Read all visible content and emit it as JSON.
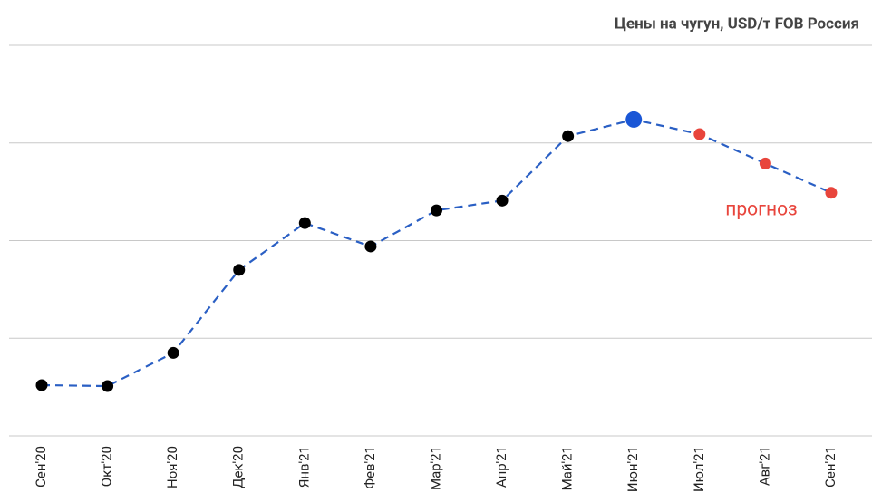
{
  "chart_data": {
    "type": "line",
    "title": "Цены на чугун, USD/т FOB Россия",
    "categories": [
      "Сен'20",
      "Окт'20",
      "Ноя'20",
      "Дек'20",
      "Янв'21",
      "Фев'21",
      "Мар'21",
      "Апр'21",
      "Май'21",
      "Июн'21",
      "Июл'21",
      "Авг'21",
      "Сен'21"
    ],
    "series": [
      {
        "name": "Цены на чугун",
        "color": "#2a5fc4",
        "values": [
          302,
          301,
          335,
          420,
          468,
          444,
          481,
          491,
          557,
          574,
          559,
          529,
          499
        ],
        "point_colors": [
          "#000000",
          "#000000",
          "#000000",
          "#000000",
          "#000000",
          "#000000",
          "#000000",
          "#000000",
          "#000000",
          "#1a56d6",
          "#e8453c",
          "#e8453c",
          "#e8453c"
        ]
      }
    ],
    "annotation": "прогноз",
    "annotation_color": "#e8453c",
    "ylim": [
      250,
      650
    ],
    "yticks": [
      250,
      350,
      450,
      550,
      650
    ],
    "grid": true
  }
}
